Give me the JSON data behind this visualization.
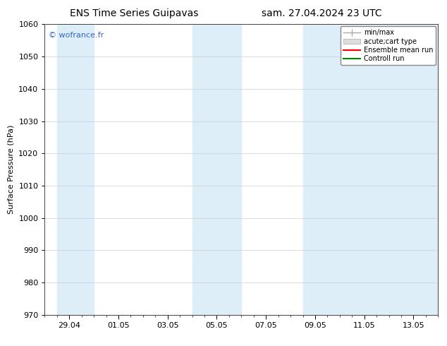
{
  "title_left": "ENS Time Series Guipavas",
  "title_right": "sam. 27.04.2024 23 UTC",
  "ylabel": "Surface Pressure (hPa)",
  "ylim": [
    970,
    1060
  ],
  "yticks": [
    970,
    980,
    990,
    1000,
    1010,
    1020,
    1030,
    1040,
    1050,
    1060
  ],
  "xtick_labels": [
    "29.04",
    "01.05",
    "03.05",
    "05.05",
    "07.05",
    "09.05",
    "11.05",
    "13.05"
  ],
  "xtick_positions": [
    1,
    3,
    5,
    7,
    9,
    11,
    13,
    15
  ],
  "xlim_start": 0,
  "xlim_end": 16,
  "shaded_bands": [
    {
      "x_start": 0.5,
      "x_end": 2.0
    },
    {
      "x_start": 6.0,
      "x_end": 8.0
    },
    {
      "x_start": 10.5,
      "x_end": 16.0
    }
  ],
  "band_color": "#ddeef8",
  "watermark_text": "© wofrance.fr",
  "watermark_color": "#3366cc",
  "legend_entries": [
    {
      "label": "min/max",
      "color": "#aaaaaa"
    },
    {
      "label": "acute;cart type",
      "color": "#cccccc"
    },
    {
      "label": "Ensemble mean run",
      "color": "#ff0000"
    },
    {
      "label": "Controll run",
      "color": "#008000"
    }
  ],
  "bg_color": "#ffffff",
  "grid_color": "#cccccc",
  "title_fontsize": 10,
  "label_fontsize": 8,
  "watermark_fontsize": 8
}
